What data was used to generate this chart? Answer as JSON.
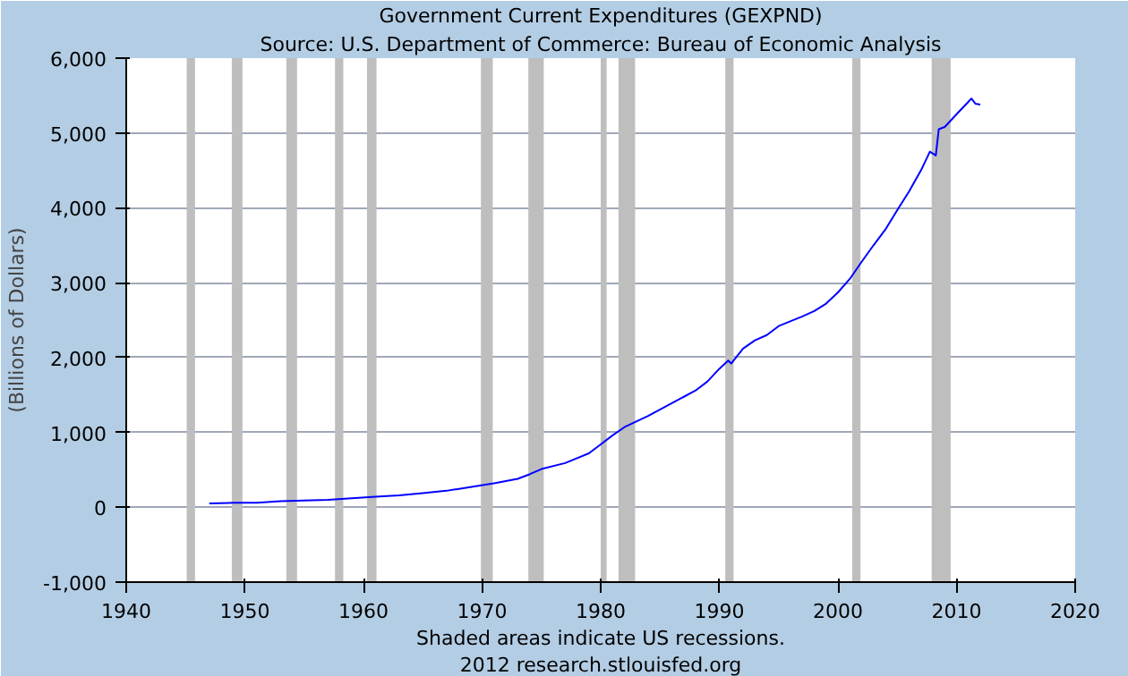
{
  "chart_data": {
    "type": "line",
    "title": "Government Current Expenditures (GEXPND)",
    "subtitle": "Source: U.S. Department of Commerce: Bureau of Economic Analysis",
    "ylabel": "(Billions of Dollars)",
    "x": [
      1947,
      1949,
      1951,
      1953,
      1955,
      1957,
      1959,
      1961,
      1963,
      1965,
      1967,
      1969,
      1971,
      1973,
      1974,
      1975,
      1977,
      1979,
      1980,
      1981,
      1982,
      1984,
      1986,
      1988,
      1989,
      1990,
      1990.75,
      1991,
      1992,
      1993,
      1994,
      1995,
      1997,
      1998,
      1999,
      2000,
      2001,
      2002,
      2003,
      2004,
      2005,
      2006,
      2007,
      2007.75,
      2008.25,
      2008.5,
      2009,
      2010,
      2011.25,
      2011.6,
      2012
    ],
    "series": [
      {
        "color": "#0000ff",
        "values": [
          50,
          60,
          60,
          80,
          90,
          100,
          120,
          140,
          160,
          190,
          220,
          270,
          320,
          380,
          440,
          510,
          590,
          720,
          840,
          960,
          1070,
          1220,
          1390,
          1560,
          1680,
          1850,
          1960,
          1920,
          2120,
          2230,
          2300,
          2420,
          2550,
          2620,
          2720,
          2870,
          3050,
          3280,
          3500,
          3710,
          3970,
          4220,
          4500,
          4750,
          4700,
          5050,
          5080,
          5250,
          5460,
          5390,
          5380
        ]
      }
    ],
    "xlim": [
      1940,
      2020
    ],
    "ylim": [
      -1000,
      6000
    ],
    "xticks": [
      1940,
      1950,
      1960,
      1970,
      1980,
      1990,
      2000,
      2010,
      2020
    ],
    "yticks": [
      {
        "value": -1000,
        "label": "-1,000"
      },
      {
        "value": 0,
        "label": "0"
      },
      {
        "value": 1000,
        "label": "1,000"
      },
      {
        "value": 2000,
        "label": "2,000"
      },
      {
        "value": 3000,
        "label": "3,000"
      },
      {
        "value": 4000,
        "label": "4,000"
      },
      {
        "value": 5000,
        "label": "5,000"
      },
      {
        "value": 6000,
        "label": "6,000"
      }
    ],
    "bands": [
      {
        "axis": "x",
        "from": 1945.1,
        "to": 1945.8,
        "color": "#bebebe"
      },
      {
        "axis": "x",
        "from": 1948.9,
        "to": 1949.8,
        "color": "#bebebe"
      },
      {
        "axis": "x",
        "from": 1953.5,
        "to": 1954.4,
        "color": "#bebebe"
      },
      {
        "axis": "x",
        "from": 1957.6,
        "to": 1958.3,
        "color": "#bebebe"
      },
      {
        "axis": "x",
        "from": 1960.3,
        "to": 1961.1,
        "color": "#bebebe"
      },
      {
        "axis": "x",
        "from": 1969.9,
        "to": 1970.9,
        "color": "#bebebe"
      },
      {
        "axis": "x",
        "from": 1973.9,
        "to": 1975.2,
        "color": "#bebebe"
      },
      {
        "axis": "x",
        "from": 1980.0,
        "to": 1980.5,
        "color": "#bebebe"
      },
      {
        "axis": "x",
        "from": 1981.5,
        "to": 1982.9,
        "color": "#bebebe"
      },
      {
        "axis": "x",
        "from": 1990.5,
        "to": 1991.2,
        "color": "#bebebe"
      },
      {
        "axis": "x",
        "from": 2001.2,
        "to": 2001.9,
        "color": "#bebebe"
      },
      {
        "axis": "x",
        "from": 2007.9,
        "to": 2009.5,
        "color": "#bebebe"
      }
    ],
    "grid": "y",
    "marker": "none",
    "line_style": "solid",
    "annotations": [
      "Shaded areas indicate US recessions.",
      "2012 research.stlouisfed.org"
    ]
  }
}
